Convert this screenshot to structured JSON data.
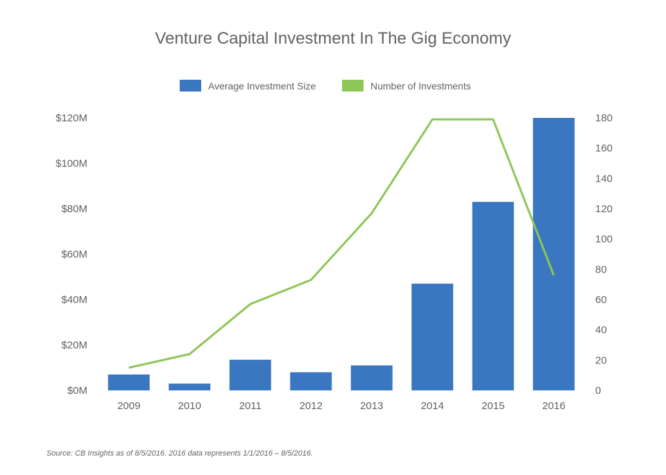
{
  "chart_data": {
    "type": "bar",
    "title": "Venture Capital Investment In The Gig Economy",
    "categories": [
      "2009",
      "2010",
      "2011",
      "2012",
      "2013",
      "2014",
      "2015",
      "2016"
    ],
    "series": [
      {
        "name": "Average Investment Size",
        "kind": "bar",
        "axis": "left",
        "color": "#3a77c0",
        "values": [
          7,
          3,
          13.5,
          8,
          11,
          47,
          83,
          120
        ]
      },
      {
        "name": "Number of Investments",
        "kind": "line",
        "axis": "right",
        "color": "#8dc657",
        "values": [
          15,
          24,
          57,
          73,
          117,
          179,
          179,
          76
        ]
      }
    ],
    "y_left": {
      "ylim": [
        0,
        120
      ],
      "ticks": [
        "$0M",
        "$20M",
        "$40M",
        "$60M",
        "$80M",
        "$100M",
        "$120M"
      ]
    },
    "y_right": {
      "ylim": [
        0,
        180
      ],
      "ticks": [
        "0",
        "20",
        "40",
        "60",
        "80",
        "100",
        "120",
        "140",
        "160",
        "180"
      ]
    },
    "grid": false,
    "legend_position": "top-center"
  },
  "source": "Source: CB Insights as of 8/5/2016. 2016 data represents 1/1/2016 – 8/5/2016."
}
